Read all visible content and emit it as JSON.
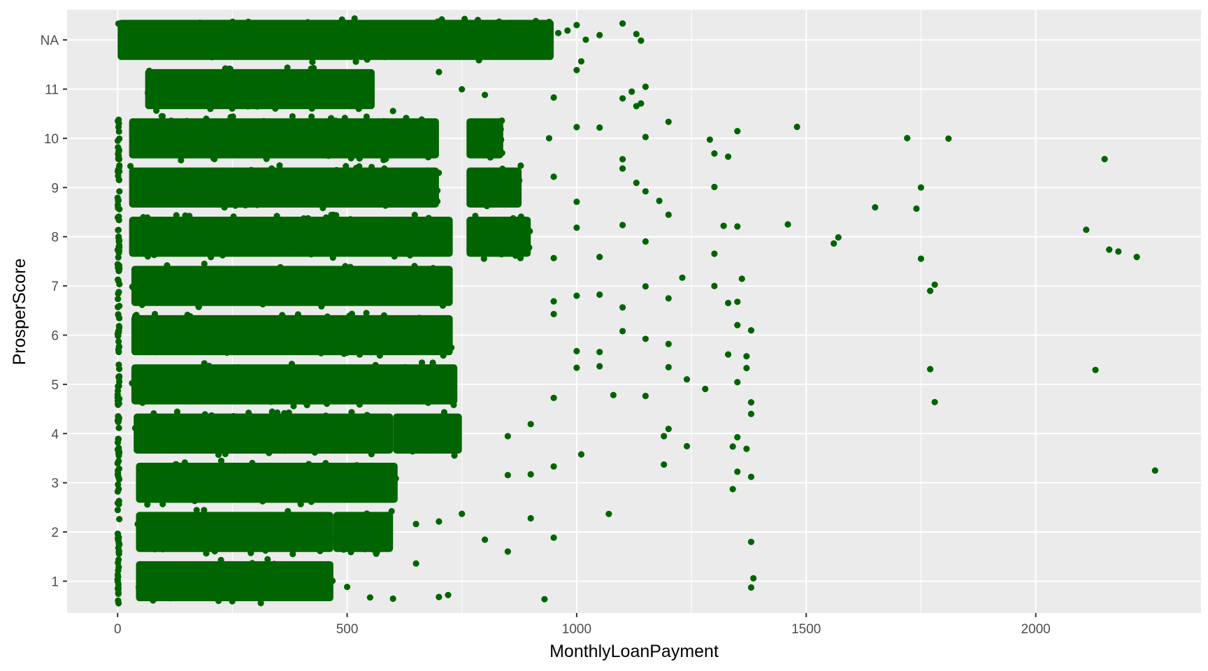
{
  "chart_data": {
    "type": "scatter",
    "title": "",
    "xlabel": "MonthlyLoanPayment",
    "ylabel": "ProsperScore",
    "xlim": [
      -110,
      2360
    ],
    "x_ticks": [
      0,
      500,
      1000,
      1500,
      2000
    ],
    "x_tick_labels": [
      "0",
      "500",
      "1000",
      "1500",
      "2000"
    ],
    "y_categories": [
      "1",
      "2",
      "3",
      "4",
      "5",
      "6",
      "7",
      "8",
      "9",
      "10",
      "11",
      "NA"
    ],
    "jitter": "vertical ±0.45 within each category",
    "point_color": "#006400",
    "panel_background": "#ebebeb",
    "grid_color": "#ffffff",
    "grid": true,
    "legend": "none",
    "dense_ranges": [
      {
        "category": "1",
        "ranges": [
          [
            40,
            470
          ]
        ]
      },
      {
        "category": "2",
        "ranges": [
          [
            40,
            470
          ],
          [
            470,
            600
          ]
        ]
      },
      {
        "category": "3",
        "ranges": [
          [
            40,
            610
          ]
        ]
      },
      {
        "category": "4",
        "ranges": [
          [
            35,
            600
          ],
          [
            600,
            750
          ]
        ]
      },
      {
        "category": "5",
        "ranges": [
          [
            30,
            740
          ]
        ]
      },
      {
        "category": "6",
        "ranges": [
          [
            30,
            730
          ]
        ]
      },
      {
        "category": "7",
        "ranges": [
          [
            30,
            730
          ]
        ]
      },
      {
        "category": "8",
        "ranges": [
          [
            25,
            730
          ],
          [
            760,
            900
          ]
        ]
      },
      {
        "category": "9",
        "ranges": [
          [
            25,
            700
          ],
          [
            760,
            880
          ]
        ]
      },
      {
        "category": "10",
        "ranges": [
          [
            25,
            700
          ],
          [
            760,
            840
          ]
        ]
      },
      {
        "category": "11",
        "ranges": [
          [
            60,
            560
          ]
        ]
      },
      {
        "category": "NA",
        "ranges": [
          [
            0,
            950
          ]
        ]
      }
    ],
    "outliers": [
      {
        "category": "NA",
        "x": [
          960,
          980,
          1000,
          1010,
          1020,
          1050,
          1100,
          1130,
          1140
        ]
      },
      {
        "category": "11",
        "x": [
          600,
          700,
          750,
          800,
          950,
          1000,
          1100,
          1120,
          1130,
          1140,
          1150
        ]
      },
      {
        "category": "10",
        "x": [
          940,
          1000,
          1050,
          1100,
          1150,
          1200,
          1290,
          1300,
          1330,
          1350,
          1480,
          1720,
          1810,
          2150
        ]
      },
      {
        "category": "9",
        "x": [
          950,
          1000,
          1100,
          1130,
          1150,
          1180,
          1300,
          1650,
          1740,
          1750
        ]
      },
      {
        "category": "8",
        "x": [
          950,
          1000,
          1050,
          1100,
          1150,
          1200,
          1300,
          1320,
          1350,
          1460,
          1560,
          1570,
          1750,
          2110,
          2160,
          2180,
          2220
        ]
      },
      {
        "category": "7",
        "x": [
          950,
          1000,
          1050,
          1100,
          1150,
          1200,
          1230,
          1300,
          1330,
          1350,
          1360,
          1770,
          1780
        ]
      },
      {
        "category": "6",
        "x": [
          950,
          1000,
          1050,
          1100,
          1150,
          1200,
          1330,
          1350,
          1370,
          1380
        ]
      },
      {
        "category": "5",
        "x": [
          950,
          1000,
          1050,
          1080,
          1150,
          1200,
          1240,
          1280,
          1350,
          1370,
          1380,
          1770,
          1780,
          2130
        ]
      },
      {
        "category": "4",
        "x": [
          850,
          900,
          1010,
          1190,
          1200,
          1240,
          1340,
          1350,
          1370,
          1380
        ]
      },
      {
        "category": "3",
        "x": [
          850,
          900,
          950,
          1190,
          1340,
          1350,
          1380,
          2260
        ]
      },
      {
        "category": "2",
        "x": [
          650,
          700,
          750,
          800,
          850,
          900,
          950,
          1070,
          1380
        ]
      },
      {
        "category": "1",
        "x": [
          500,
          550,
          600,
          650,
          700,
          720,
          930,
          1380,
          1385
        ]
      }
    ]
  }
}
